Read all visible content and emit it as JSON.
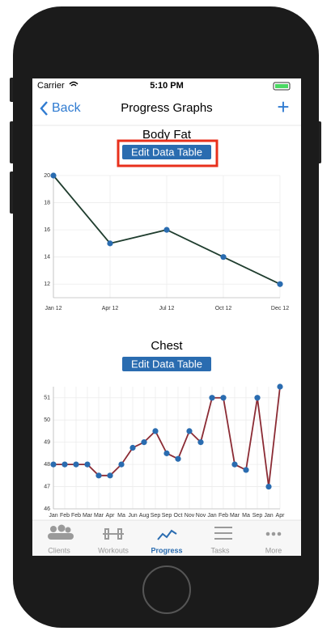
{
  "status_bar": {
    "carrier": "Carrier",
    "time": "5:10 PM"
  },
  "nav": {
    "back": "Back",
    "title": "Progress Graphs",
    "add": "+"
  },
  "chart_data": [
    {
      "type": "line",
      "title": "Body Fat",
      "button": "Edit Data Table",
      "categories": [
        "Jan 12",
        "Apr 12",
        "Jul 12",
        "Oct 12",
        "Dec 12"
      ],
      "values": [
        20,
        15,
        16,
        14,
        12
      ],
      "color": "#1f3d2e",
      "marker_color": "#2a6cb0",
      "ylim": [
        11,
        20
      ],
      "yticks": [
        12,
        14,
        16,
        18,
        20
      ],
      "grid": true
    },
    {
      "type": "line",
      "title": "Chest",
      "button": "Edit Data Table",
      "categories": [
        "Jan",
        "Feb",
        "Feb",
        "Mar",
        "Mar",
        "Apr",
        "Ma",
        "Jun",
        "Aug",
        "Sep",
        "Sep",
        "Oct",
        "Nov",
        "Nov",
        "Jan",
        "Feb",
        "Mar",
        "Ma",
        "Sep",
        "Jan",
        "Apr"
      ],
      "values": [
        48,
        48,
        48,
        48,
        47.5,
        47.5,
        48,
        48.75,
        49,
        49.5,
        48.5,
        48.25,
        49.5,
        49,
        51,
        51,
        48,
        47.75,
        51,
        47,
        51.5
      ],
      "color": "#8b2b34",
      "marker_color": "#2a6cb0",
      "ylim": [
        46,
        51.5
      ],
      "yticks": [
        46,
        47,
        48,
        49,
        50,
        51
      ],
      "grid": true
    }
  ],
  "tab_bar": {
    "items": [
      "Clients",
      "Workouts",
      "Progress",
      "Tasks",
      "More"
    ]
  }
}
